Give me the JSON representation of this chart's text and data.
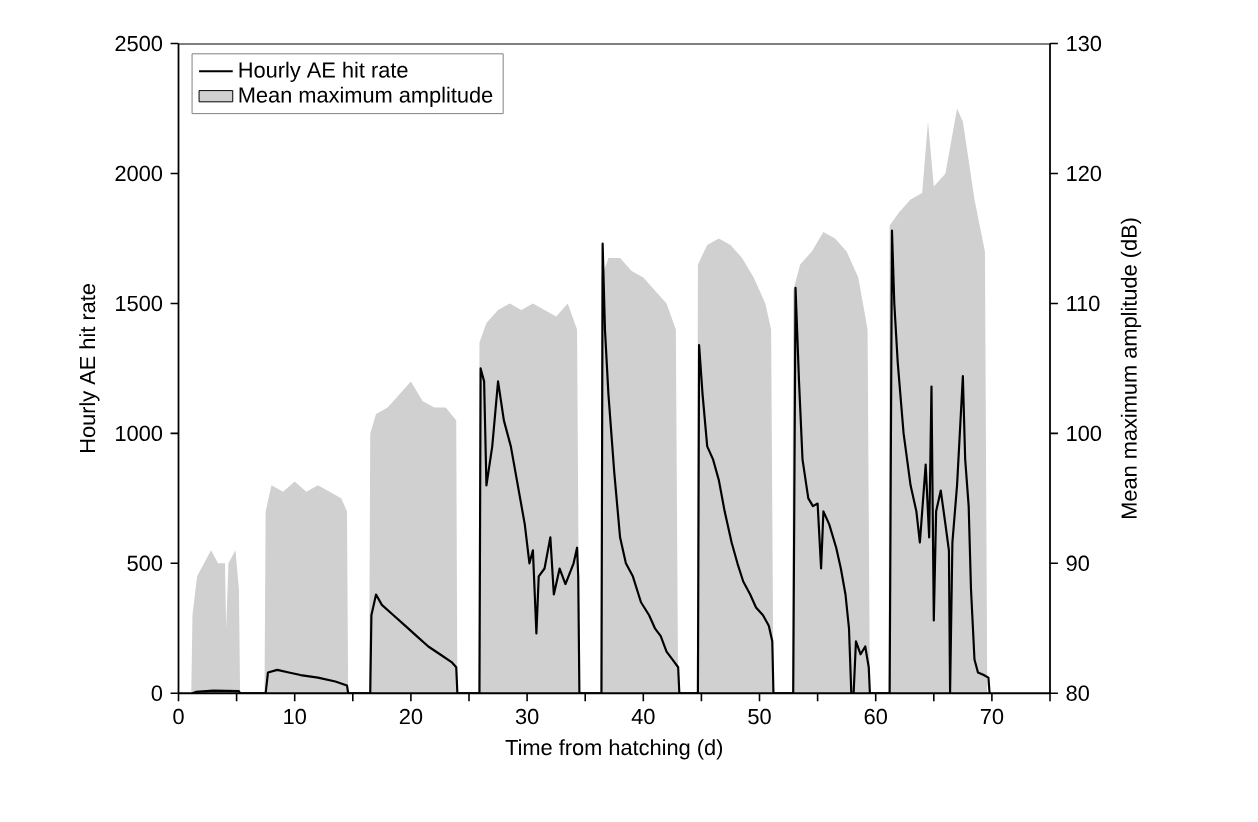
{
  "chart_data": {
    "type": "line",
    "xlabel": "Time from hatching (d)",
    "ylabel": "Hourly AE hit rate",
    "y2label": "Mean maximum amplitude (dB)",
    "xlim": [
      0,
      75
    ],
    "xticks": [
      0,
      {
        "value": 5,
        "label": null
      },
      10,
      {
        "value": 15,
        "label": null
      },
      20,
      {
        "value": 25,
        "label": null
      },
      30,
      {
        "value": 35,
        "label": null
      },
      40,
      {
        "value": 45,
        "label": null
      },
      50,
      {
        "value": 55,
        "label": null
      },
      60,
      {
        "value": 65,
        "label": null
      },
      70,
      {
        "value": 75,
        "label": null
      }
    ],
    "ylim": [
      0,
      2500
    ],
    "yticks": [
      0,
      500,
      1000,
      1500,
      2000,
      2500
    ],
    "y2lim": [
      80,
      130
    ],
    "y2ticks": [
      80,
      90,
      100,
      110,
      120,
      130
    ],
    "legend": "top left",
    "series": [
      {
        "name": "Hourly AE hit rate",
        "color": "#000000",
        "x": [
          1.2,
          1.5,
          3,
          5.2,
          5.3,
          7.5,
          7.7,
          8.5,
          9.5,
          10.5,
          12,
          13.5,
          14.5,
          14.6,
          16.5,
          16.6,
          17.0,
          17.5,
          18.5,
          19.5,
          20.5,
          21.5,
          22.5,
          23.5,
          23.9,
          24.0,
          25.9,
          26.0,
          26.3,
          26.5,
          27.0,
          27.5,
          28.0,
          28.6,
          29.2,
          29.8,
          30.2,
          30.5,
          30.8,
          31.0,
          31.5,
          32.0,
          32.3,
          32.8,
          33.3,
          34.0,
          34.3,
          34.4,
          34.5,
          36.4,
          36.5,
          36.7,
          37.0,
          37.5,
          38.0,
          38.5,
          39.1,
          39.8,
          40.5,
          41.0,
          41.5,
          42.0,
          42.5,
          43.0,
          43.1,
          44.7,
          44.8,
          45.1,
          45.5,
          46.0,
          46.5,
          47.0,
          47.6,
          48.1,
          48.6,
          49.2,
          49.7,
          50.3,
          50.8,
          51.1,
          51.2,
          52.9,
          53.1,
          53.4,
          53.7,
          54.2,
          54.6,
          55.0,
          55.3,
          55.5,
          56.0,
          56.6,
          57.0,
          57.4,
          57.7,
          57.9,
          58.1,
          58.3,
          58.7,
          59.1,
          59.4,
          59.5,
          61.2,
          61.4,
          61.6,
          61.9,
          62.4,
          63.0,
          63.5,
          63.8,
          64.3,
          64.6,
          64.8,
          65.0,
          65.2,
          65.6,
          66.0,
          66.3,
          66.4,
          66.6,
          67.0,
          67.5,
          67.7,
          68.0,
          68.2,
          68.5,
          68.8,
          69.3,
          69.7,
          69.8
        ],
        "values": [
          0,
          5,
          10,
          8,
          0,
          0,
          80,
          90,
          80,
          70,
          60,
          45,
          30,
          0,
          0,
          300,
          380,
          340,
          300,
          260,
          220,
          180,
          150,
          120,
          100,
          0,
          0,
          1250,
          1200,
          800,
          950,
          1200,
          1050,
          950,
          800,
          650,
          500,
          550,
          230,
          450,
          480,
          600,
          380,
          480,
          420,
          500,
          560,
          450,
          0,
          0,
          1730,
          1400,
          1150,
          850,
          600,
          500,
          450,
          350,
          300,
          250,
          220,
          160,
          130,
          100,
          0,
          0,
          1340,
          1150,
          950,
          900,
          820,
          700,
          580,
          500,
          430,
          380,
          330,
          300,
          260,
          200,
          0,
          0,
          1560,
          1200,
          900,
          750,
          720,
          730,
          480,
          700,
          650,
          560,
          480,
          380,
          250,
          0,
          0,
          200,
          150,
          180,
          100,
          0,
          0,
          1780,
          1500,
          1270,
          1000,
          800,
          700,
          580,
          880,
          600,
          1180,
          280,
          700,
          780,
          650,
          550,
          0,
          580,
          800,
          1220,
          900,
          720,
          400,
          130,
          80,
          70,
          60,
          0
        ]
      },
      {
        "name": "Mean maximum amplitude",
        "type": "area",
        "axis": "y2",
        "color": "#d0d0d0",
        "x": [
          1.1,
          1.2,
          1.6,
          2.2,
          2.8,
          3.4,
          4.0,
          4.1,
          4.3,
          4.9,
          5.2,
          5.3,
          7.4,
          7.5,
          8.0,
          9,
          10,
          11,
          12,
          13,
          14,
          14.5,
          14.6,
          16.4,
          16.5,
          17,
          18,
          19,
          20,
          21,
          22,
          23,
          23.9,
          24.0,
          25.8,
          25.9,
          26.5,
          27.5,
          28.5,
          29.5,
          30.5,
          31.5,
          32.5,
          33.5,
          34.3,
          34.5,
          36.3,
          36.4,
          37,
          38,
          39,
          40,
          41,
          42,
          42.8,
          43.0,
          44.6,
          44.7,
          45.5,
          46.5,
          47.5,
          48.5,
          49.5,
          50.5,
          51.0,
          51.2,
          52.8,
          52.9,
          53.5,
          54.5,
          55.5,
          56.5,
          57.5,
          58.5,
          59.3,
          59.5,
          61.1,
          61.2,
          62,
          63,
          64,
          64.5,
          65,
          66,
          67,
          67.5,
          68.5,
          69.4,
          69.6
        ],
        "values": [
          80,
          86,
          89,
          90,
          91,
          90,
          90,
          85,
          90,
          91,
          88,
          80,
          80,
          94,
          96,
          95.5,
          96.3,
          95.5,
          96,
          95.5,
          95,
          94,
          80,
          80,
          100,
          101.5,
          102,
          103,
          104,
          102.5,
          102,
          102,
          101,
          80,
          80,
          107,
          108.5,
          109.5,
          110,
          109.5,
          110,
          109.5,
          109,
          110,
          108,
          80,
          80,
          112,
          113.5,
          113.5,
          112.5,
          112,
          111,
          110,
          108,
          80,
          80,
          113,
          114.5,
          115,
          114.5,
          113.5,
          112,
          110,
          108,
          80,
          80,
          111,
          113,
          114,
          115.5,
          115,
          114,
          112,
          108,
          80,
          80,
          116,
          117,
          118,
          118.5,
          124,
          119,
          120,
          125,
          124,
          118,
          114,
          80
        ]
      }
    ]
  }
}
